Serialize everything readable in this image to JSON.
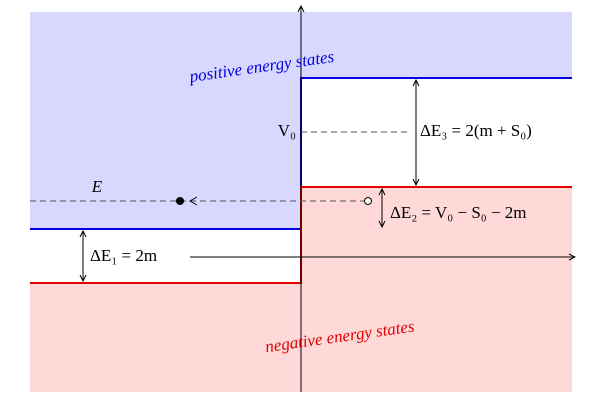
{
  "labels": {
    "positive": "positive energy states",
    "negative": "negative energy states",
    "v0": "V₀",
    "energy": "E",
    "delta_e1": "ΔE₁ = 2m",
    "delta_e2": "ΔE₂ = V₀ − S₀ − 2m",
    "delta_e3": "ΔE₃ = 2(m + S₀)"
  }
}
